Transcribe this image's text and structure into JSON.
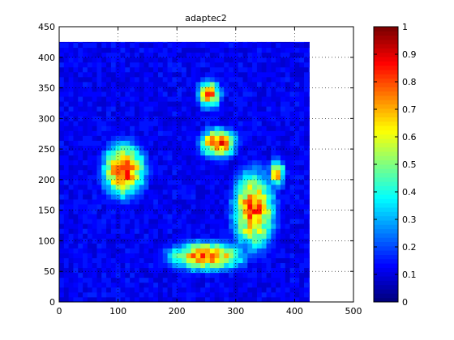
{
  "chart_data": {
    "type": "heatmap",
    "title": "adaptec2",
    "xlabel": "",
    "ylabel": "",
    "xlim": [
      0,
      500
    ],
    "ylim": [
      0,
      450
    ],
    "x_ticks": [
      0,
      100,
      200,
      300,
      400,
      500
    ],
    "y_ticks": [
      0,
      50,
      100,
      150,
      200,
      250,
      300,
      350,
      400,
      450
    ],
    "grid": true,
    "colormap": "jet",
    "colorbar": {
      "range": [
        0,
        1
      ],
      "ticks": [
        0,
        0.1,
        0.2,
        0.3,
        0.4,
        0.5,
        0.6,
        0.7,
        0.8,
        0.9,
        1
      ],
      "tick_labels": [
        "0",
        "0.1",
        "0.2",
        "0.3",
        "0.4",
        "0.5",
        "0.6",
        "0.7",
        "0.8",
        "0.9",
        "1"
      ]
    },
    "data_extent": {
      "x": [
        0,
        425
      ],
      "y": [
        0,
        425
      ]
    },
    "background_value": 0.12,
    "hotspots": [
      {
        "x": 110,
        "y": 215,
        "rx": 45,
        "ry": 55,
        "peak": 0.9
      },
      {
        "x": 270,
        "y": 260,
        "rx": 38,
        "ry": 30,
        "peak": 0.92
      },
      {
        "x": 255,
        "y": 340,
        "rx": 25,
        "ry": 30,
        "peak": 0.8
      },
      {
        "x": 330,
        "y": 150,
        "rx": 45,
        "ry": 80,
        "peak": 0.85
      },
      {
        "x": 250,
        "y": 75,
        "rx": 80,
        "ry": 30,
        "peak": 0.85
      },
      {
        "x": 370,
        "y": 210,
        "rx": 18,
        "ry": 30,
        "peak": 0.75
      }
    ]
  },
  "colors": {
    "background": "#ffffff",
    "axis": "#000000",
    "grid": "#000000"
  }
}
